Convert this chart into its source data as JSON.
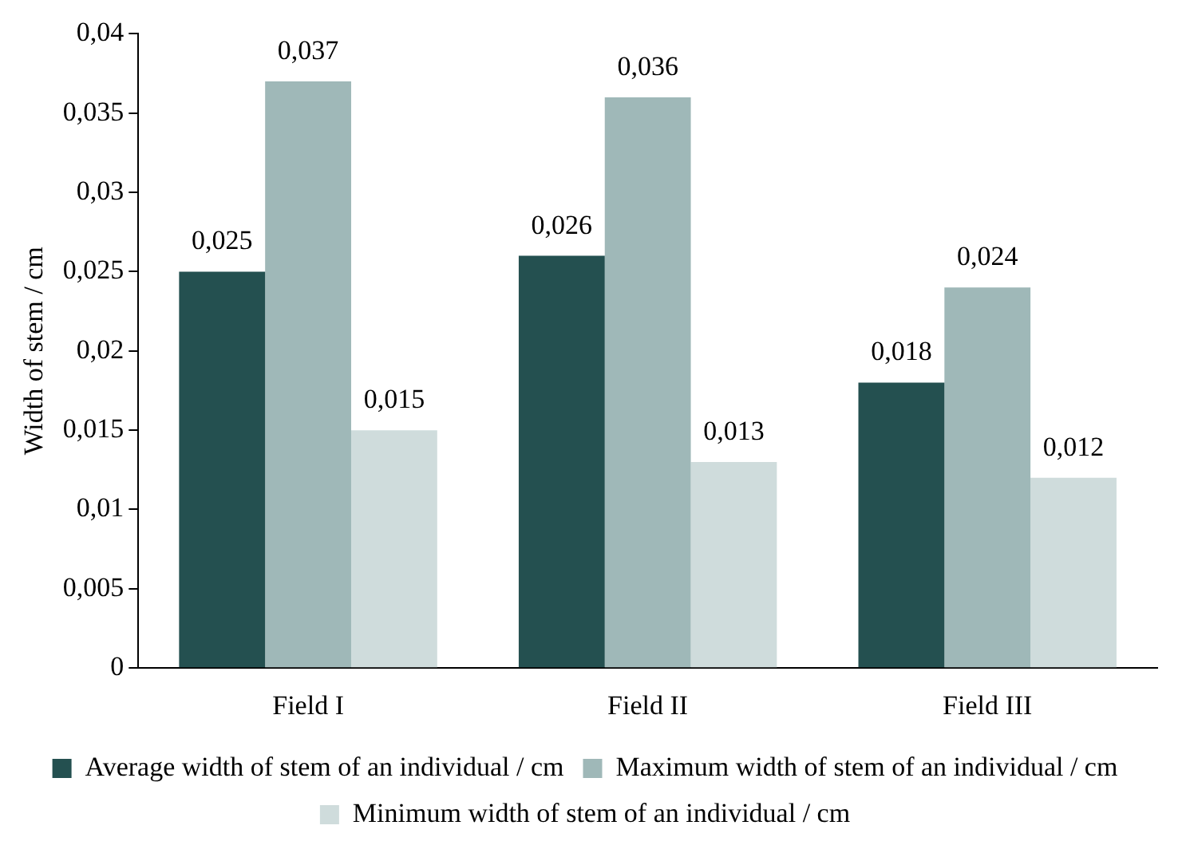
{
  "chart_data": {
    "type": "bar",
    "ylabel": "Width of stem / cm",
    "categories": [
      "Field I",
      "Field II",
      "Field III"
    ],
    "series": [
      {
        "name": "Average width of stem of an individual / cm",
        "color": "#245050",
        "values": [
          0.025,
          0.026,
          0.018
        ],
        "value_labels": [
          "0,025",
          "0,026",
          "0,018"
        ]
      },
      {
        "name": "Maximum width of stem of an individual / cm",
        "color": "#9fb8b8",
        "values": [
          0.037,
          0.036,
          0.024
        ],
        "value_labels": [
          "0,037",
          "0,036",
          "0,024"
        ]
      },
      {
        "name": "Minimum width of stem of an individual / cm",
        "color": "#cfdcdc",
        "values": [
          0.015,
          0.013,
          0.012
        ],
        "value_labels": [
          "0,015",
          "0,013",
          "0,012"
        ]
      }
    ],
    "ylim": [
      0,
      0.04
    ],
    "yticks": [
      {
        "value": 0,
        "label": "0"
      },
      {
        "value": 0.005,
        "label": "0,005"
      },
      {
        "value": 0.01,
        "label": "0,01"
      },
      {
        "value": 0.015,
        "label": "0,015"
      },
      {
        "value": 0.02,
        "label": "0,02"
      },
      {
        "value": 0.025,
        "label": "0,025"
      },
      {
        "value": 0.03,
        "label": "0,03"
      },
      {
        "value": 0.035,
        "label": "0,035"
      },
      {
        "value": 0.04,
        "label": "0,04"
      }
    ],
    "grid": false,
    "legend": "bottom"
  }
}
